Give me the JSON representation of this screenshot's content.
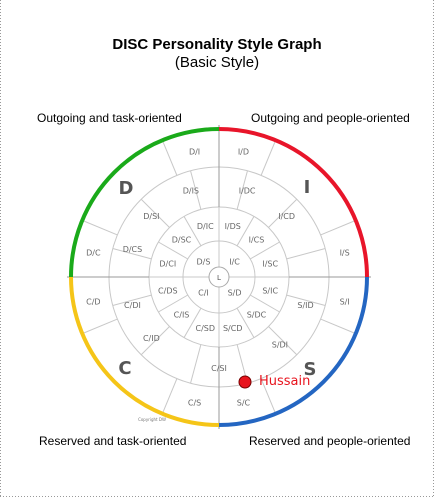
{
  "title": "DISC Personality Style Graph",
  "subtitle": "(Basic Style)",
  "quadrants": {
    "top_left": "Outgoing and task-oriented",
    "top_right": "Outgoing and people-oriented",
    "bottom_left": "Reserved and task-oriented",
    "bottom_right": "Reserved and people-oriented"
  },
  "big_letters": {
    "d": "D",
    "i": "I",
    "c": "C",
    "s": "S"
  },
  "center_label": "L",
  "colors": {
    "d": "#1aaa1a",
    "i": "#e8152a",
    "s": "#2466c2",
    "c": "#f5c518",
    "marker": "#e8141e",
    "marker_label": "#e8141e"
  },
  "cells": {
    "outer": [
      "D/I",
      "I/D",
      "I/S",
      "S/I",
      "S/C",
      "C/S",
      "C/D",
      "D/C"
    ],
    "ring3": [
      "D/IS",
      "I/DC",
      "I/CD",
      "S/ID",
      "S/DI",
      "C/SI",
      "C/ID",
      "C/DI",
      "D/CS",
      "D/SI"
    ],
    "ring2": [
      "D/IC",
      "I/DS",
      "I/CS",
      "I/SC",
      "S/IC",
      "S/DC",
      "S/CD",
      "C/SD",
      "C/IS",
      "C/DS",
      "D/CI",
      "D/SC"
    ],
    "ring1": [
      "D/S",
      "I/C",
      "S/D",
      "C/I"
    ]
  },
  "marker": {
    "label": "Hussain"
  },
  "copyright": "Copyright DW"
}
